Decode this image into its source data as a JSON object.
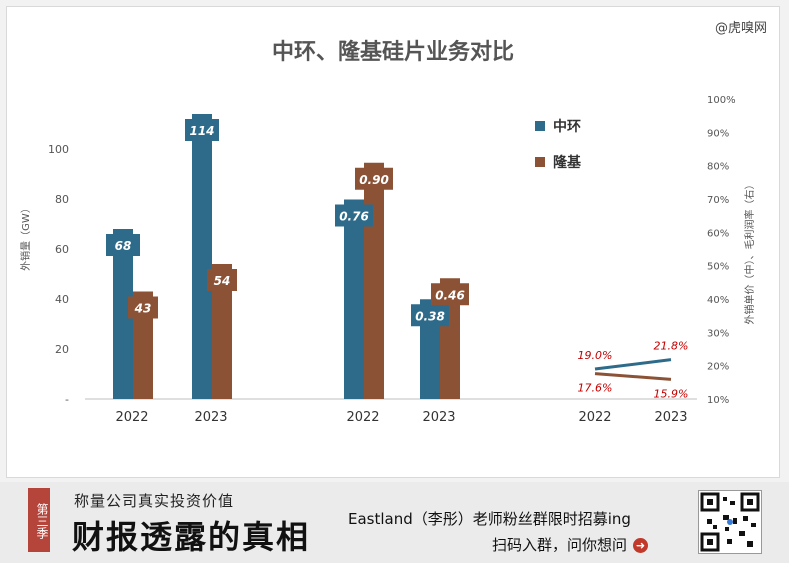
{
  "watermark": "@虎嗅网",
  "chart_data": {
    "type": "bar",
    "title": "中环、隆基硅片业务对比",
    "ylabel_left": "外销量（GW）",
    "ylabel_right": "外销单价（中）、毛利润率（右）",
    "left_ticks": [
      "-",
      "20",
      "40",
      "60",
      "80",
      "100"
    ],
    "right_ticks": [
      "10%",
      "20%",
      "30%",
      "40%",
      "50%",
      "60%",
      "70%",
      "80%",
      "90%",
      "100%"
    ],
    "ylim_left": [
      0,
      120
    ],
    "ylim_right": [
      10,
      100
    ],
    "legend": [
      {
        "name": "中环",
        "color": "#2e6b8a"
      },
      {
        "name": "隆基",
        "color": "#8b5236"
      }
    ],
    "groups": [
      {
        "name": "外销量",
        "categories": [
          "2022",
          "2023"
        ],
        "series": [
          {
            "name": "中环",
            "values": [
              68,
              114
            ],
            "labels": [
              "68",
              "114"
            ]
          },
          {
            "name": "隆基",
            "values": [
              43,
              54
            ],
            "labels": [
              "43",
              "54"
            ]
          }
        ]
      },
      {
        "name": "外销单价",
        "categories": [
          "2022",
          "2023"
        ],
        "series": [
          {
            "name": "中环",
            "values": [
              0.76,
              0.38
            ],
            "labels": [
              "0.76",
              "0.38"
            ]
          },
          {
            "name": "隆基",
            "values": [
              0.9,
              0.46
            ],
            "labels": [
              "0.90",
              "0.46"
            ]
          }
        ]
      },
      {
        "name": "毛利润率",
        "type": "line",
        "categories": [
          "2022",
          "2023"
        ],
        "series": [
          {
            "name": "中环",
            "values": [
              19.0,
              21.8
            ],
            "labels": [
              "19.0%",
              "21.8%"
            ]
          },
          {
            "name": "隆基",
            "values": [
              17.6,
              15.9
            ],
            "labels": [
              "17.6%",
              "15.9%"
            ]
          }
        ]
      }
    ]
  },
  "banner": {
    "badge": "第三季",
    "tagline": "称量公司真实投资价值",
    "headline": "财报透露的真相",
    "promo": "Eastland（李彤）老师粉丝群限时招募ing",
    "cta": "扫码入群，问你想问",
    "cta_icon": "arrow-right-icon"
  }
}
